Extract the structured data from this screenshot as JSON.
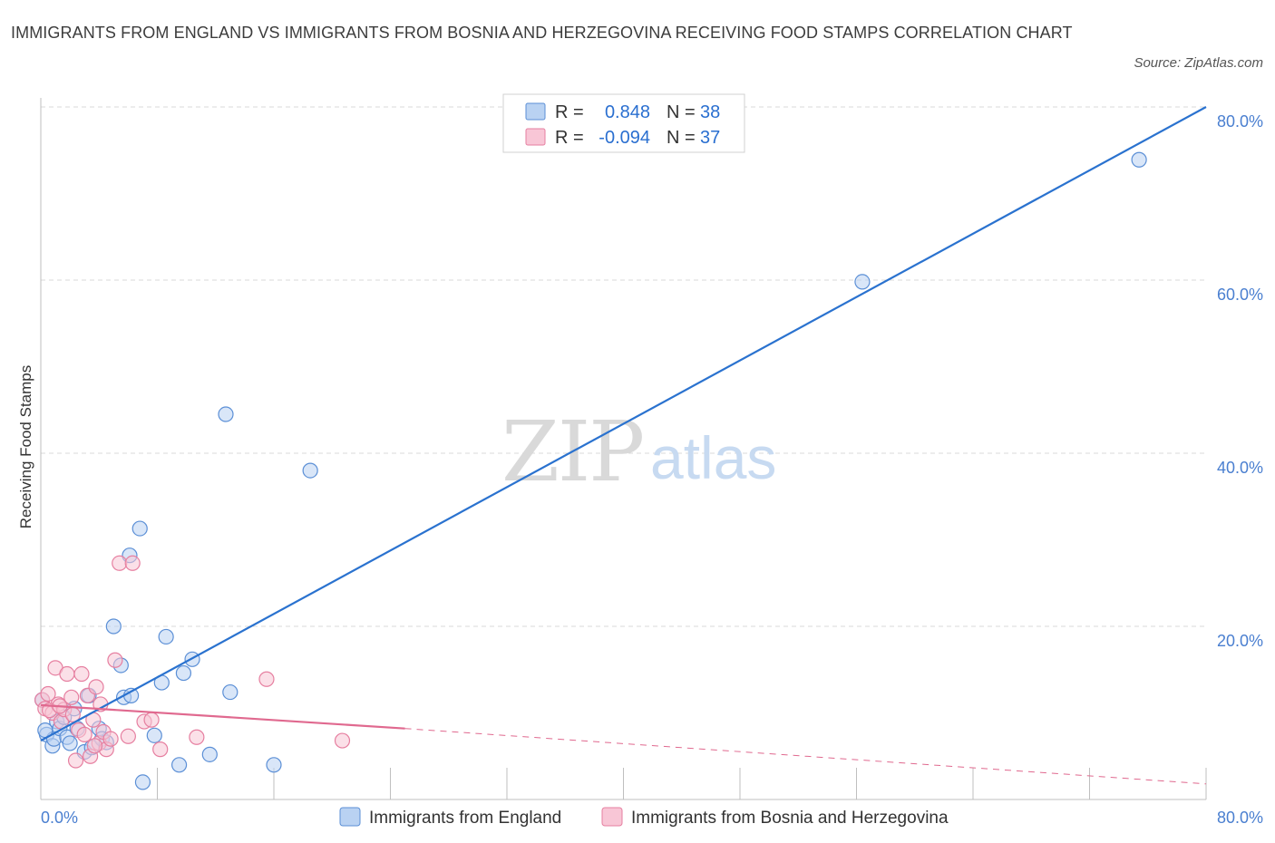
{
  "title": "IMMIGRANTS FROM ENGLAND VS IMMIGRANTS FROM BOSNIA AND HERZEGOVINA RECEIVING FOOD STAMPS CORRELATION CHART",
  "source": "Source: ZipAtlas.com",
  "watermark": {
    "zip": "ZIP",
    "atlas": "atlas"
  },
  "colors": {
    "england": "#5b8fd6",
    "england_fill": "#b9d2f2",
    "england_line": "#2a72cf",
    "bosnia": "#e67fa0",
    "bosnia_fill": "#f8c6d6",
    "bosnia_line": "#e0698f",
    "grid": "#d8d8d8",
    "axis_label": "#4a7fd0"
  },
  "stats": {
    "r_label": "R =",
    "n_label": "N =",
    "england": {
      "r": "0.848",
      "n": "38"
    },
    "bosnia": {
      "r": "-0.094",
      "n": "37"
    }
  },
  "chart_data": {
    "type": "scatter",
    "title": "IMMIGRANTS FROM ENGLAND VS IMMIGRANTS FROM BOSNIA AND HERZEGOVINA RECEIVING FOOD STAMPS CORRELATION CHART",
    "xlabel": "",
    "ylabel": "Receiving Food Stamps",
    "xlim": [
      0,
      80
    ],
    "ylim": [
      0,
      80
    ],
    "x_tick_labels": [
      "0.0%",
      "80.0%"
    ],
    "y_ticks": [
      20,
      40,
      60,
      80
    ],
    "y_tick_labels": [
      "20.0%",
      "40.0%",
      "60.0%",
      "80.0%"
    ],
    "grid": true,
    "legend_position": "bottom",
    "series": [
      {
        "name": "Immigrants from England",
        "r": 0.848,
        "n": 38,
        "trend": {
          "x": [
            0,
            80
          ],
          "y": [
            6.8,
            80.0
          ],
          "dashed_from": null
        },
        "points": [
          [
            0.1,
            11.5
          ],
          [
            0.4,
            7.5
          ],
          [
            0.8,
            6.2
          ],
          [
            0.9,
            7.0
          ],
          [
            1.1,
            9.0
          ],
          [
            1.3,
            8.2
          ],
          [
            1.6,
            9.5
          ],
          [
            1.8,
            7.2
          ],
          [
            2.0,
            6.5
          ],
          [
            2.3,
            10.5
          ],
          [
            2.5,
            8.2
          ],
          [
            3.0,
            5.5
          ],
          [
            3.3,
            12.0
          ],
          [
            3.5,
            6.0
          ],
          [
            4.0,
            8.2
          ],
          [
            4.2,
            7.0
          ],
          [
            4.5,
            6.6
          ],
          [
            5.0,
            20.0
          ],
          [
            5.5,
            15.5
          ],
          [
            5.7,
            11.8
          ],
          [
            6.2,
            12.0
          ],
          [
            6.1,
            28.2
          ],
          [
            6.8,
            31.3
          ],
          [
            7.0,
            2.0
          ],
          [
            7.8,
            7.4
          ],
          [
            8.3,
            13.5
          ],
          [
            8.6,
            18.8
          ],
          [
            9.5,
            4.0
          ],
          [
            9.8,
            14.6
          ],
          [
            10.4,
            16.2
          ],
          [
            11.6,
            5.2
          ],
          [
            12.7,
            44.5
          ],
          [
            13.0,
            12.4
          ],
          [
            16.0,
            4.0
          ],
          [
            18.5,
            38.0
          ],
          [
            56.4,
            59.8
          ],
          [
            75.4,
            73.9
          ],
          [
            0.3,
            8.0
          ]
        ]
      },
      {
        "name": "Immigrants from Bosnia and Herzegovina",
        "r": -0.094,
        "n": 37,
        "trend": {
          "x": [
            0,
            25,
            80
          ],
          "y": [
            10.9,
            8.2,
            1.8
          ],
          "dashed_from": 25
        },
        "points": [
          [
            0.1,
            11.5
          ],
          [
            0.3,
            10.5
          ],
          [
            0.5,
            12.2
          ],
          [
            0.8,
            10.0
          ],
          [
            1.0,
            15.2
          ],
          [
            1.2,
            11.0
          ],
          [
            1.4,
            9.0
          ],
          [
            1.6,
            10.4
          ],
          [
            1.8,
            14.5
          ],
          [
            2.1,
            11.8
          ],
          [
            2.4,
            4.5
          ],
          [
            2.6,
            8.0
          ],
          [
            2.8,
            14.5
          ],
          [
            3.0,
            7.5
          ],
          [
            3.2,
            12.0
          ],
          [
            3.4,
            5.0
          ],
          [
            3.6,
            9.2
          ],
          [
            3.8,
            13.0
          ],
          [
            4.0,
            6.5
          ],
          [
            4.3,
            7.8
          ],
          [
            4.5,
            5.8
          ],
          [
            4.8,
            7.0
          ],
          [
            5.1,
            16.1
          ],
          [
            5.4,
            27.3
          ],
          [
            6.0,
            7.3
          ],
          [
            6.3,
            27.3
          ],
          [
            7.1,
            9.0
          ],
          [
            7.6,
            9.2
          ],
          [
            8.2,
            5.8
          ],
          [
            10.7,
            7.2
          ],
          [
            15.5,
            13.9
          ],
          [
            20.7,
            6.8
          ],
          [
            0.6,
            10.3
          ],
          [
            1.3,
            10.8
          ],
          [
            2.2,
            9.8
          ],
          [
            3.7,
            6.2
          ],
          [
            4.1,
            11.0
          ]
        ]
      }
    ]
  }
}
